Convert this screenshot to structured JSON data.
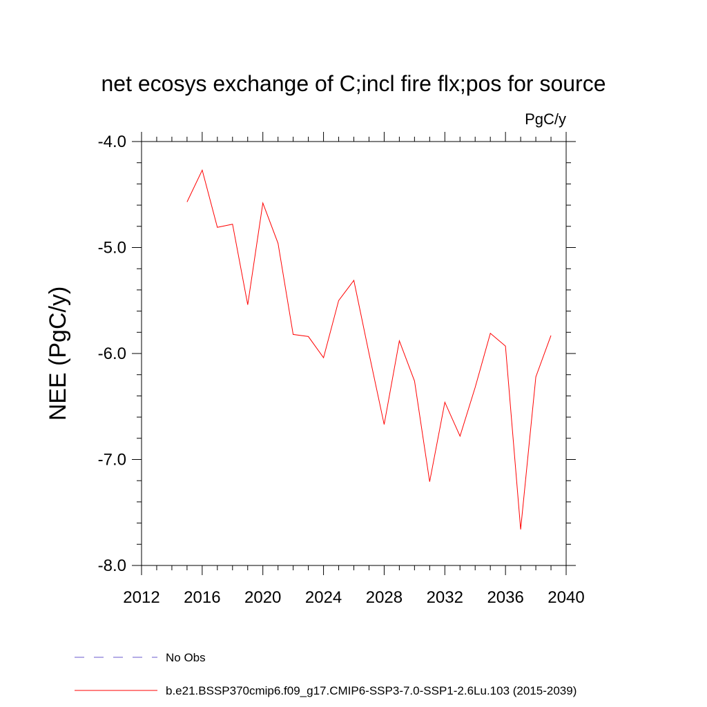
{
  "chart_data": {
    "type": "line",
    "title": "net ecosys exchange of C;incl fire flx;pos for source",
    "units_label": "PgC/y",
    "ylabel": "NEE  (PgC/y)",
    "xlabel": "",
    "xlim": [
      2012,
      2040
    ],
    "ylim": [
      -8.0,
      -4.0
    ],
    "x_ticks": [
      2012,
      2016,
      2020,
      2024,
      2028,
      2032,
      2036,
      2040
    ],
    "x_tick_labels": [
      "2012",
      "2016",
      "2020",
      "2024",
      "2028",
      "2032",
      "2036",
      "2040"
    ],
    "y_ticks": [
      -4.0,
      -5.0,
      -6.0,
      -7.0,
      -8.0
    ],
    "y_tick_labels": [
      "-4.0",
      "-5.0",
      "-6.0",
      "-7.0",
      "-8.0"
    ],
    "grid": false,
    "series": [
      {
        "name": "b.e21.BSSP370cmip6.f09_g17.CMIP6-SSP3-7.0-SSP1-2.6Lu.103 (2015-2039)",
        "color": "#ff0000",
        "x": [
          2015,
          2016,
          2017,
          2018,
          2019,
          2020,
          2021,
          2022,
          2023,
          2024,
          2025,
          2026,
          2027,
          2028,
          2029,
          2030,
          2031,
          2032,
          2033,
          2034,
          2035,
          2036,
          2037,
          2038,
          2039
        ],
        "values": [
          -4.57,
          -4.27,
          -4.81,
          -4.78,
          -5.54,
          -4.58,
          -4.96,
          -5.82,
          -5.84,
          -6.04,
          -5.5,
          -5.31,
          -6.0,
          -6.67,
          -5.88,
          -6.26,
          -7.21,
          -6.46,
          -6.78,
          -6.32,
          -5.81,
          -5.93,
          -7.66,
          -6.22,
          -5.83
        ]
      }
    ],
    "legend": [
      {
        "label": "No Obs",
        "style": "dashed",
        "color": "#6a5acd"
      },
      {
        "label": "b.e21.BSSP370cmip6.f09_g17.CMIP6-SSP3-7.0-SSP1-2.6Lu.103 (2015-2039)",
        "style": "solid",
        "color": "#ff0000"
      }
    ]
  }
}
